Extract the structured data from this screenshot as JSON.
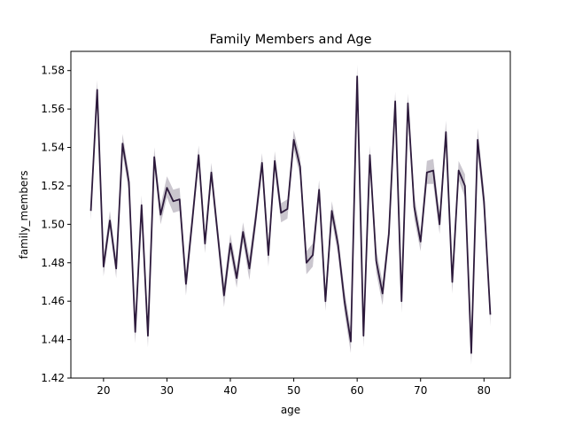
{
  "chart_data": {
    "type": "line",
    "title": "Family Members and Age",
    "xlabel": "age",
    "ylabel": "family_members",
    "xlim": [
      14.85,
      84.15
    ],
    "ylim": [
      1.42,
      1.59
    ],
    "xticks": [
      20,
      30,
      40,
      50,
      60,
      70,
      80
    ],
    "yticks": [
      1.42,
      1.44,
      1.46,
      1.48,
      1.5,
      1.52,
      1.54,
      1.56,
      1.58
    ],
    "yticks_labels": [
      "1.42",
      "1.44",
      "1.46",
      "1.48",
      "1.50",
      "1.52",
      "1.54",
      "1.56",
      "1.58"
    ],
    "grid": false,
    "line_color": "#2d1a3c",
    "band_color": "#2d1a3c",
    "series": [
      {
        "x": [
          18,
          19,
          20,
          21,
          22,
          23,
          24,
          25,
          26,
          27,
          28,
          29,
          30,
          31,
          32,
          33,
          34,
          35,
          36,
          37,
          38,
          39,
          40,
          41,
          42,
          43,
          44,
          45,
          46,
          47,
          48,
          49,
          50,
          51,
          52,
          53,
          54,
          55,
          56,
          57,
          58,
          59,
          60,
          61,
          62,
          63,
          64,
          65,
          66,
          67,
          68,
          69,
          70,
          71,
          72,
          73,
          74,
          75,
          76,
          77,
          78,
          79,
          80,
          81
        ],
        "y": [
          1.507,
          1.57,
          1.478,
          1.502,
          1.477,
          1.542,
          1.522,
          1.444,
          1.51,
          1.442,
          1.535,
          1.505,
          1.519,
          1.512,
          1.513,
          1.469,
          1.502,
          1.536,
          1.49,
          1.527,
          1.495,
          1.463,
          1.49,
          1.472,
          1.496,
          1.477,
          1.503,
          1.532,
          1.484,
          1.533,
          1.506,
          1.508,
          1.544,
          1.53,
          1.48,
          1.484,
          1.518,
          1.46,
          1.507,
          1.489,
          1.46,
          1.439,
          1.577,
          1.442,
          1.536,
          1.481,
          1.464,
          1.495,
          1.564,
          1.46,
          1.563,
          1.509,
          1.491,
          1.527,
          1.528,
          1.5,
          1.548,
          1.47,
          1.528,
          1.52,
          1.433,
          1.544,
          1.512,
          1.453
        ],
        "lower": [
          1.502,
          1.565,
          1.473,
          1.498,
          1.472,
          1.537,
          1.517,
          1.438,
          1.505,
          1.436,
          1.53,
          1.5,
          1.514,
          1.506,
          1.507,
          1.463,
          1.497,
          1.531,
          1.485,
          1.522,
          1.49,
          1.457,
          1.485,
          1.467,
          1.491,
          1.471,
          1.498,
          1.527,
          1.478,
          1.528,
          1.501,
          1.503,
          1.539,
          1.525,
          1.474,
          1.478,
          1.513,
          1.455,
          1.502,
          1.484,
          1.454,
          1.433,
          1.571,
          1.436,
          1.531,
          1.475,
          1.458,
          1.49,
          1.559,
          1.454,
          1.558,
          1.503,
          1.486,
          1.521,
          1.521,
          1.495,
          1.542,
          1.464,
          1.523,
          1.514,
          1.427,
          1.538,
          1.506,
          1.447
        ],
        "upper": [
          1.512,
          1.575,
          1.483,
          1.507,
          1.482,
          1.547,
          1.527,
          1.45,
          1.515,
          1.448,
          1.54,
          1.51,
          1.525,
          1.518,
          1.519,
          1.475,
          1.507,
          1.541,
          1.495,
          1.532,
          1.5,
          1.469,
          1.495,
          1.477,
          1.501,
          1.483,
          1.508,
          1.537,
          1.49,
          1.538,
          1.511,
          1.513,
          1.549,
          1.535,
          1.486,
          1.49,
          1.523,
          1.466,
          1.512,
          1.494,
          1.466,
          1.445,
          1.583,
          1.448,
          1.541,
          1.487,
          1.47,
          1.5,
          1.569,
          1.466,
          1.568,
          1.515,
          1.496,
          1.533,
          1.534,
          1.505,
          1.554,
          1.476,
          1.533,
          1.526,
          1.439,
          1.55,
          1.518,
          1.459
        ]
      }
    ]
  }
}
